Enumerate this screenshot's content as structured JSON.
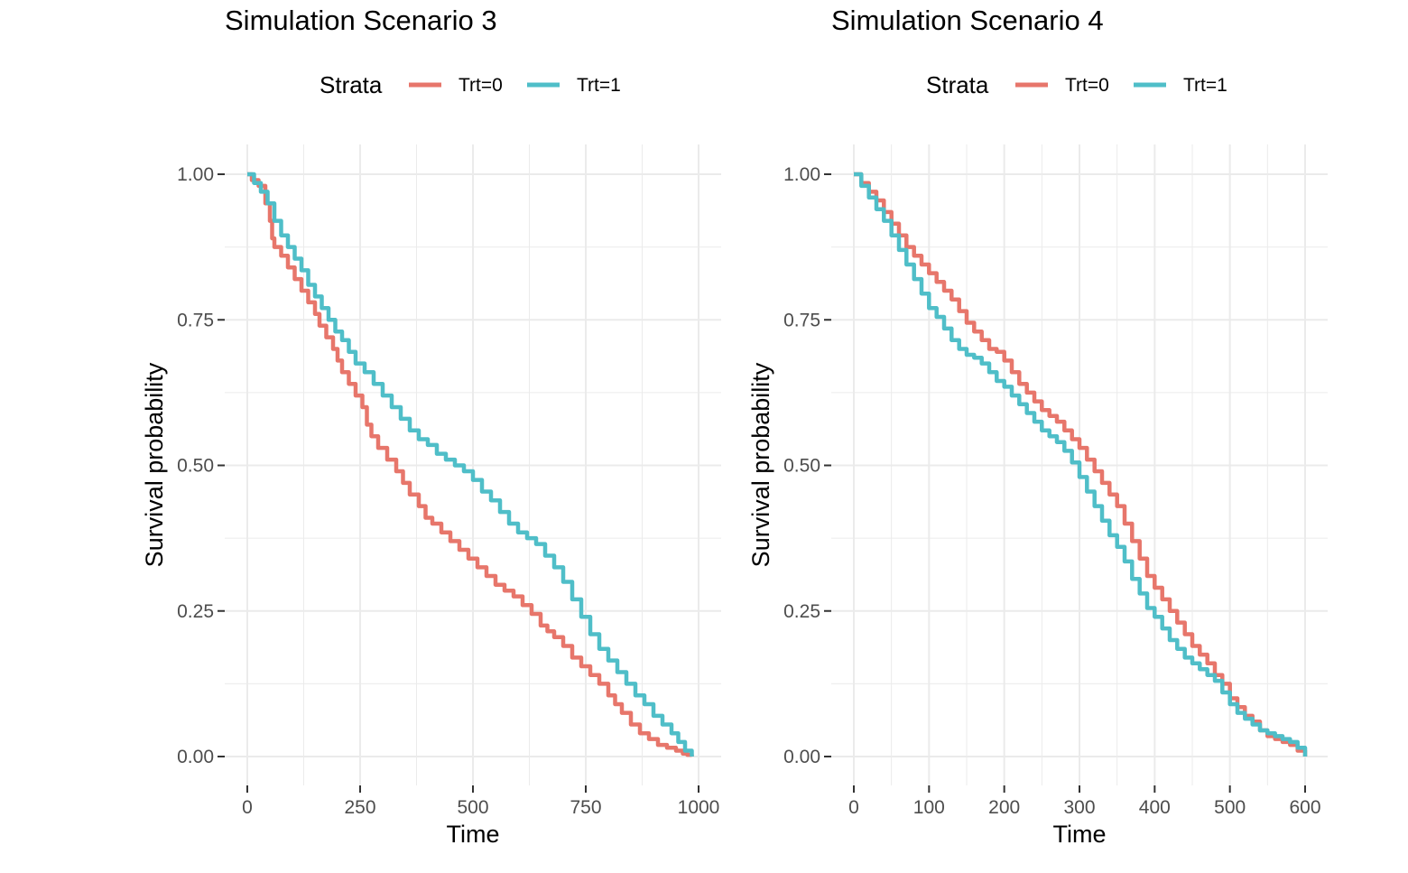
{
  "chart_data": [
    {
      "type": "line",
      "step": true,
      "title": "Simulation Scenario 3",
      "xlabel": "Time",
      "ylabel": "Survival probability",
      "xlim": [
        0,
        1000
      ],
      "ylim": [
        0,
        1
      ],
      "xticks": [
        0,
        250,
        500,
        750,
        1000
      ],
      "xtick_labels": [
        "0",
        "250",
        "500",
        "750",
        "1000"
      ],
      "yticks": [
        0,
        0.25,
        0.5,
        0.75,
        1.0
      ],
      "ytick_labels": [
        "0.00",
        "0.25",
        "0.50",
        "0.75",
        "1.00"
      ],
      "legend": {
        "title": "Strata",
        "position": "top",
        "entries": [
          "Trt=0",
          "Trt=1"
        ]
      },
      "series": [
        {
          "name": "Trt=0",
          "color": "#e7766b",
          "x": [
            0,
            10,
            25,
            40,
            50,
            55,
            60,
            75,
            90,
            105,
            120,
            135,
            150,
            160,
            175,
            190,
            200,
            210,
            225,
            240,
            255,
            265,
            275,
            290,
            310,
            330,
            345,
            360,
            380,
            395,
            410,
            430,
            450,
            470,
            490,
            510,
            530,
            550,
            570,
            590,
            610,
            630,
            650,
            665,
            680,
            700,
            720,
            740,
            760,
            780,
            800,
            815,
            830,
            850,
            870,
            890,
            910,
            930,
            950,
            965,
            975,
            985
          ],
          "y": [
            1.0,
            0.99,
            0.98,
            0.95,
            0.92,
            0.89,
            0.875,
            0.86,
            0.84,
            0.82,
            0.8,
            0.78,
            0.76,
            0.74,
            0.72,
            0.7,
            0.68,
            0.66,
            0.64,
            0.62,
            0.6,
            0.57,
            0.55,
            0.53,
            0.51,
            0.49,
            0.47,
            0.45,
            0.43,
            0.41,
            0.4,
            0.385,
            0.37,
            0.355,
            0.34,
            0.325,
            0.31,
            0.295,
            0.285,
            0.275,
            0.26,
            0.245,
            0.225,
            0.215,
            0.205,
            0.19,
            0.17,
            0.155,
            0.14,
            0.125,
            0.105,
            0.09,
            0.075,
            0.055,
            0.04,
            0.03,
            0.02,
            0.015,
            0.01,
            0.005,
            0.003,
            0.0
          ]
        },
        {
          "name": "Trt=1",
          "color": "#4fbec8",
          "x": [
            0,
            15,
            30,
            45,
            60,
            75,
            90,
            105,
            120,
            135,
            150,
            165,
            180,
            195,
            210,
            225,
            240,
            260,
            280,
            300,
            320,
            340,
            360,
            380,
            400,
            420,
            440,
            460,
            480,
            500,
            520,
            540,
            560,
            580,
            600,
            620,
            640,
            660,
            680,
            700,
            720,
            740,
            760,
            780,
            800,
            820,
            840,
            860,
            880,
            900,
            920,
            940,
            955,
            970,
            985
          ],
          "y": [
            1.0,
            0.985,
            0.97,
            0.95,
            0.92,
            0.895,
            0.875,
            0.855,
            0.835,
            0.81,
            0.79,
            0.77,
            0.75,
            0.73,
            0.715,
            0.695,
            0.675,
            0.66,
            0.64,
            0.62,
            0.6,
            0.58,
            0.56,
            0.545,
            0.535,
            0.52,
            0.51,
            0.5,
            0.49,
            0.475,
            0.455,
            0.44,
            0.42,
            0.4,
            0.385,
            0.375,
            0.365,
            0.345,
            0.325,
            0.3,
            0.27,
            0.24,
            0.21,
            0.185,
            0.165,
            0.145,
            0.125,
            0.105,
            0.09,
            0.07,
            0.055,
            0.04,
            0.025,
            0.01,
            0.0
          ]
        }
      ]
    },
    {
      "type": "line",
      "step": true,
      "title": "Simulation Scenario 4",
      "xlabel": "Time",
      "ylabel": "Survival probability",
      "xlim": [
        0,
        600
      ],
      "ylim": [
        0,
        1
      ],
      "xticks": [
        0,
        100,
        200,
        300,
        400,
        500,
        600
      ],
      "xtick_labels": [
        "0",
        "100",
        "200",
        "300",
        "400",
        "500",
        "600"
      ],
      "yticks": [
        0,
        0.25,
        0.5,
        0.75,
        1.0
      ],
      "ytick_labels": [
        "0.00",
        "0.25",
        "0.50",
        "0.75",
        "1.00"
      ],
      "legend": {
        "title": "Strata",
        "position": "top",
        "entries": [
          "Trt=0",
          "Trt=1"
        ]
      },
      "series": [
        {
          "name": "Trt=0",
          "color": "#e7766b",
          "x": [
            0,
            10,
            20,
            30,
            40,
            50,
            60,
            70,
            80,
            90,
            100,
            110,
            120,
            130,
            140,
            150,
            160,
            170,
            180,
            190,
            200,
            210,
            220,
            230,
            240,
            250,
            260,
            270,
            280,
            290,
            300,
            310,
            320,
            330,
            340,
            350,
            360,
            370,
            380,
            390,
            400,
            410,
            420,
            430,
            440,
            450,
            460,
            470,
            480,
            490,
            500,
            510,
            520,
            530,
            540,
            550,
            560,
            570,
            580,
            590,
            600
          ],
          "y": [
            1.0,
            0.985,
            0.97,
            0.955,
            0.935,
            0.915,
            0.895,
            0.875,
            0.86,
            0.845,
            0.83,
            0.815,
            0.8,
            0.785,
            0.765,
            0.745,
            0.73,
            0.715,
            0.7,
            0.695,
            0.68,
            0.66,
            0.64,
            0.625,
            0.61,
            0.595,
            0.585,
            0.575,
            0.56,
            0.545,
            0.53,
            0.51,
            0.49,
            0.47,
            0.45,
            0.43,
            0.4,
            0.37,
            0.34,
            0.31,
            0.29,
            0.27,
            0.25,
            0.23,
            0.21,
            0.19,
            0.175,
            0.16,
            0.14,
            0.125,
            0.1,
            0.085,
            0.07,
            0.06,
            0.045,
            0.035,
            0.03,
            0.025,
            0.02,
            0.01,
            0.0
          ]
        },
        {
          "name": "Trt=1",
          "color": "#4fbec8",
          "x": [
            0,
            10,
            20,
            30,
            40,
            50,
            60,
            70,
            80,
            90,
            100,
            110,
            120,
            130,
            140,
            150,
            160,
            170,
            180,
            190,
            200,
            210,
            220,
            230,
            240,
            250,
            260,
            270,
            280,
            290,
            300,
            310,
            320,
            330,
            340,
            350,
            360,
            370,
            380,
            390,
            400,
            410,
            420,
            430,
            440,
            450,
            460,
            470,
            480,
            490,
            500,
            510,
            520,
            530,
            540,
            550,
            560,
            570,
            580,
            590,
            600
          ],
          "y": [
            1.0,
            0.98,
            0.96,
            0.94,
            0.92,
            0.895,
            0.87,
            0.845,
            0.82,
            0.795,
            0.77,
            0.755,
            0.735,
            0.715,
            0.7,
            0.69,
            0.685,
            0.675,
            0.66,
            0.645,
            0.635,
            0.62,
            0.605,
            0.59,
            0.575,
            0.56,
            0.55,
            0.54,
            0.525,
            0.505,
            0.48,
            0.455,
            0.43,
            0.405,
            0.38,
            0.36,
            0.335,
            0.305,
            0.28,
            0.255,
            0.24,
            0.22,
            0.2,
            0.185,
            0.17,
            0.16,
            0.15,
            0.14,
            0.13,
            0.11,
            0.09,
            0.075,
            0.065,
            0.055,
            0.045,
            0.04,
            0.035,
            0.03,
            0.025,
            0.015,
            0.0
          ]
        }
      ]
    }
  ]
}
